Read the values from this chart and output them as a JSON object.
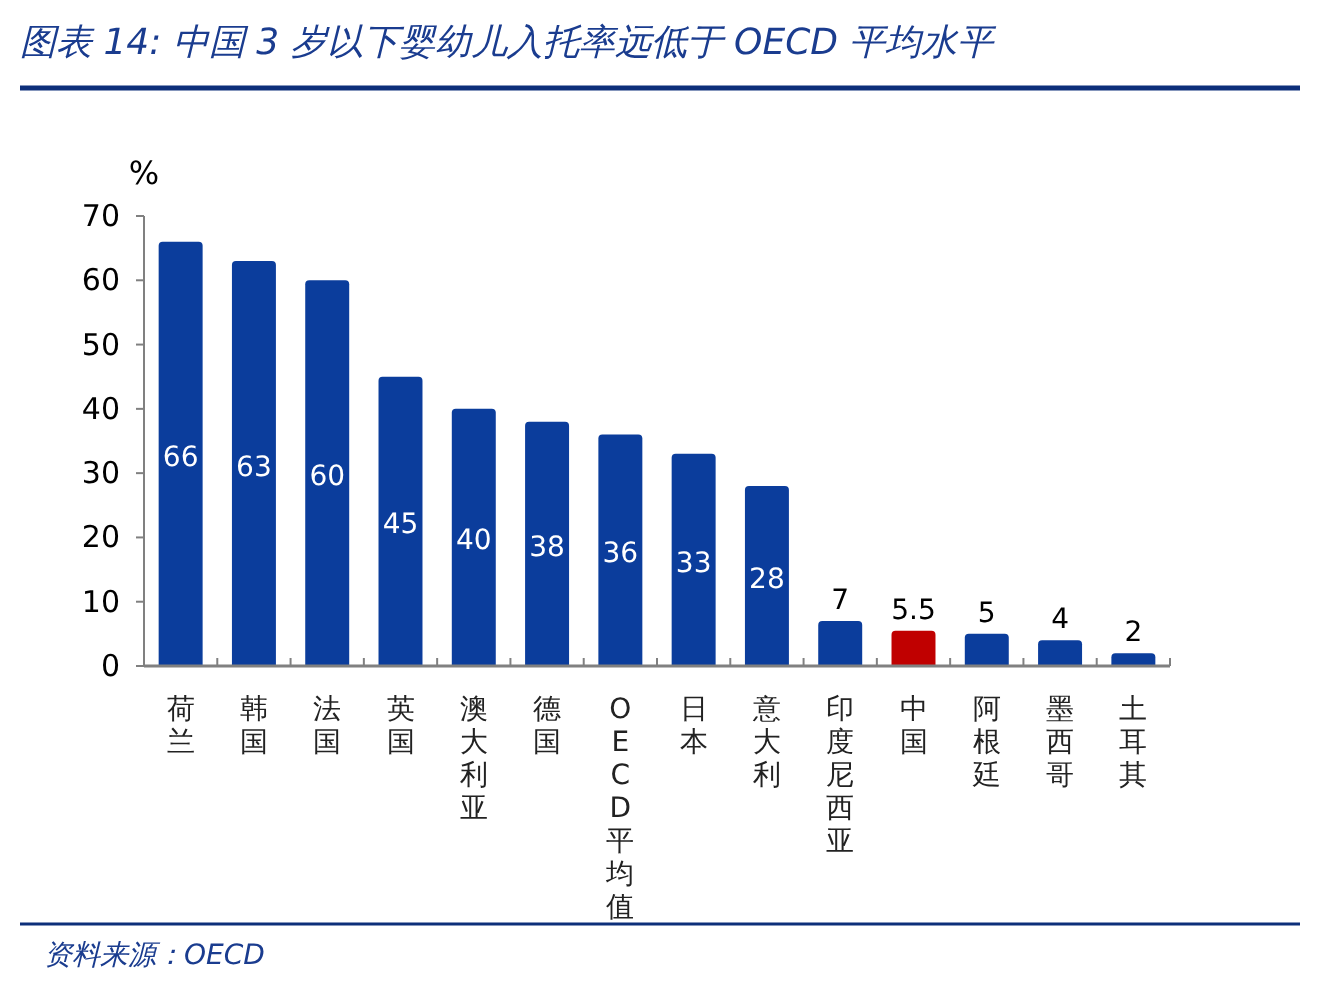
{
  "chart_data": {
    "type": "bar",
    "title": "图表 14:  中国 3 岁以下婴幼儿入托率远低于 OECD 平均水平",
    "ylabel": "%",
    "categories": [
      "荷兰",
      "韩国",
      "法国",
      "英国",
      "澳大利亚",
      "德国",
      "OECD平均值",
      "日本",
      "意大利",
      "印度尼西亚",
      "中国",
      "阿根廷",
      "墨西哥",
      "土耳其"
    ],
    "values": [
      66,
      63,
      60,
      45,
      40,
      38,
      36,
      33,
      28,
      7,
      5.5,
      5,
      4,
      2
    ],
    "colors": [
      "#0b3d9c",
      "#0b3d9c",
      "#0b3d9c",
      "#0b3d9c",
      "#0b3d9c",
      "#0b3d9c",
      "#0b3d9c",
      "#0b3d9c",
      "#0b3d9c",
      "#0b3d9c",
      "#c00000",
      "#0b3d9c",
      "#0b3d9c",
      "#0b3d9c"
    ],
    "ylim": [
      0,
      70
    ],
    "yticks": [
      0,
      10,
      20,
      30,
      40,
      50,
      60,
      70
    ],
    "grid": false,
    "data_labels": true,
    "annotations": [
      "资料来源：OECD"
    ]
  }
}
